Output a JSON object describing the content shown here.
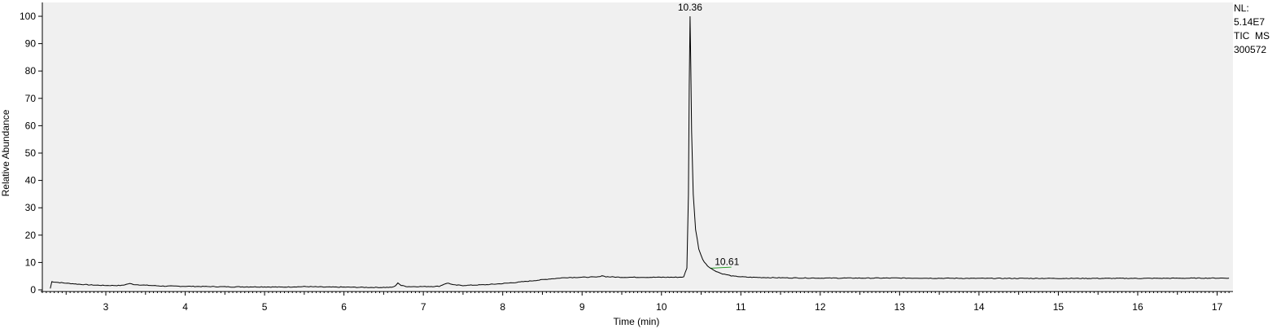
{
  "side_info": {
    "nl_label": "NL:",
    "nl_value": "5.14E7",
    "scan_filter": "TIC  MS",
    "sample_id": "300572"
  },
  "chart_data": {
    "type": "line",
    "title": "",
    "xlabel": "Time (min)",
    "ylabel": "Relative Abundance",
    "xlim": [
      2.2,
      17.2
    ],
    "ylim": [
      0,
      100
    ],
    "x_ticks": [
      3,
      4,
      5,
      6,
      7,
      8,
      9,
      10,
      11,
      12,
      13,
      14,
      15,
      16,
      17
    ],
    "y_ticks": [
      0,
      10,
      20,
      30,
      40,
      50,
      60,
      70,
      80,
      90,
      100
    ],
    "grid": false,
    "plot_background": "#f0f0f0",
    "line_color": "#000000",
    "baseline_color": "#2a9d2a",
    "peak_labels": [
      {
        "label": "10.36",
        "x": 10.36,
        "y": 100
      },
      {
        "label": "10.61",
        "x": 10.61,
        "y": 7.9
      }
    ],
    "series": [
      {
        "x": [
          2.3,
          2.32,
          2.4,
          2.6,
          2.8,
          3.0,
          3.2,
          3.3,
          3.35,
          3.4,
          3.5,
          3.7,
          4.0,
          4.3,
          4.6,
          5.0,
          5.2,
          5.5,
          5.8,
          6.0,
          6.3,
          6.6,
          6.65,
          6.68,
          6.72,
          6.8,
          7.0,
          7.2,
          7.28,
          7.32,
          7.38,
          7.5,
          7.8,
          8.0,
          8.2,
          8.4,
          8.6,
          8.8,
          9.0,
          9.2,
          9.25,
          9.3,
          9.5,
          9.8,
          10.0,
          10.2,
          10.28,
          10.32,
          10.34,
          10.35,
          10.36,
          10.37,
          10.38,
          10.4,
          10.43,
          10.47,
          10.52,
          10.58,
          10.65,
          10.75,
          10.9,
          11.1,
          11.5,
          12.0,
          13.0,
          14.0,
          15.0,
          16.0,
          17.0,
          17.15
        ],
        "y": [
          0.5,
          3.0,
          2.7,
          2.2,
          1.8,
          1.6,
          1.6,
          2.3,
          2.0,
          1.9,
          1.7,
          1.4,
          1.3,
          1.2,
          1.1,
          1.1,
          1.0,
          1.2,
          1.0,
          1.0,
          0.9,
          0.9,
          1.4,
          2.6,
          1.6,
          1.2,
          1.2,
          1.3,
          2.3,
          2.4,
          1.8,
          1.6,
          1.9,
          2.3,
          2.8,
          3.4,
          4.0,
          4.5,
          4.6,
          4.7,
          5.2,
          4.8,
          4.6,
          4.6,
          4.6,
          4.6,
          4.7,
          8.0,
          35.0,
          75.0,
          100.0,
          82.0,
          58.0,
          35.0,
          22.0,
          15.0,
          11.0,
          8.8,
          7.3,
          6.0,
          5.0,
          4.6,
          4.4,
          4.3,
          4.3,
          4.2,
          4.2,
          4.2,
          4.3,
          4.3
        ]
      }
    ]
  }
}
